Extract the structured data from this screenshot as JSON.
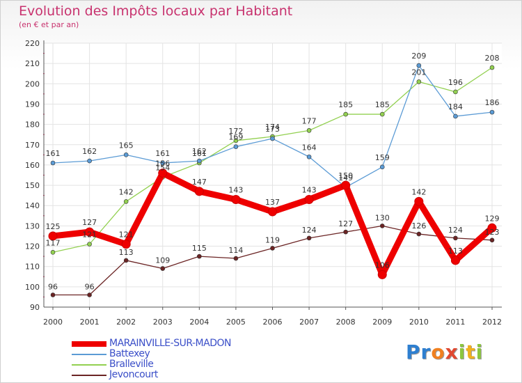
{
  "title": "Evolution des Impôts locaux par Habitant",
  "subtitle": "(en € et par an)",
  "logo": {
    "letters": [
      "P",
      "r",
      "o",
      "x",
      "i",
      "t",
      "i"
    ],
    "colors": [
      "#2e7fd0",
      "#2e7fd0",
      "#f08020",
      "#e04830",
      "#8cc63f",
      "#f0b020",
      "#8cc63f"
    ]
  },
  "chart_data": {
    "type": "line",
    "x": [
      "2000",
      "2001",
      "2002",
      "2003",
      "2004",
      "2005",
      "2006",
      "2007",
      "2008",
      "2009",
      "2010",
      "2011",
      "2012"
    ],
    "ylim": [
      90,
      220
    ],
    "yticks": [
      "90",
      "100",
      "110",
      "120",
      "130",
      "140",
      "150",
      "160",
      "170",
      "180",
      "190",
      "200",
      "210",
      "220"
    ],
    "grid": true,
    "legend": "bottom-left",
    "series": [
      {
        "name": "MARAINVILLE-SUR-MADON",
        "color": "#ee0000",
        "values": [
          125,
          127,
          121,
          156,
          147,
          143,
          137,
          143,
          150,
          106,
          142,
          113,
          129
        ],
        "labels": [
          "125",
          "127",
          "121",
          "156",
          "147",
          "143",
          "137",
          "143",
          "150",
          "106",
          "142",
          "113",
          "129"
        ]
      },
      {
        "name": "Battexey",
        "color": "#5b9bd5",
        "values": [
          161,
          162,
          165,
          161,
          162,
          169,
          173,
          164,
          149,
          159,
          209,
          184,
          186
        ],
        "labels": [
          "161",
          "162",
          "165",
          "161",
          "162",
          "169",
          "173",
          "164",
          "149",
          "159",
          "209",
          "184",
          "186"
        ]
      },
      {
        "name": "Bralleville",
        "color": "#92d050",
        "values": [
          117,
          121,
          142,
          154,
          161,
          172,
          174,
          177,
          185,
          185,
          201,
          196,
          208
        ],
        "labels": [
          "117",
          "121",
          "142",
          "154",
          "161",
          "172",
          "174",
          "177",
          "185",
          "185",
          "201",
          "196",
          "208"
        ]
      },
      {
        "name": "Jevoncourt",
        "color": "#6b2424",
        "values": [
          96,
          96,
          113,
          109,
          115,
          114,
          119,
          124,
          127,
          130,
          126,
          124,
          123
        ],
        "labels": [
          "96",
          "96",
          "113",
          "109",
          "115",
          "114",
          "119",
          "124",
          "127",
          "130",
          "126",
          "124",
          "123"
        ]
      }
    ]
  }
}
